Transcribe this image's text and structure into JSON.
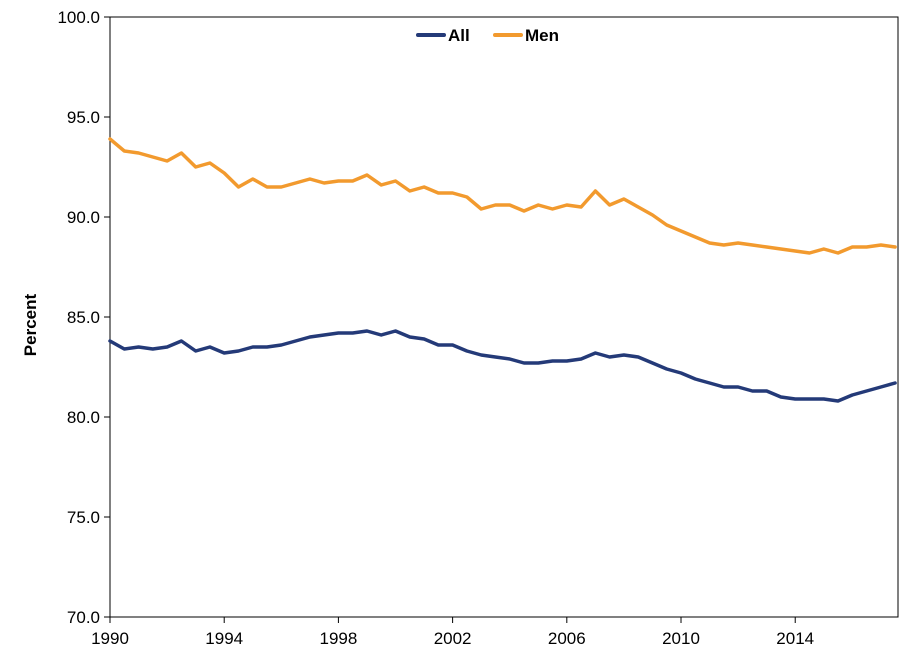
{
  "chart_data": {
    "type": "line",
    "title": "",
    "xlabel": "",
    "ylabel": "Percent",
    "xlim": [
      1990,
      2017.6
    ],
    "ylim": [
      70.0,
      100.0
    ],
    "x_ticks": [
      "1990",
      "1994",
      "1998",
      "2002",
      "2006",
      "2010",
      "2014"
    ],
    "y_ticks": [
      "70.0",
      "75.0",
      "80.0",
      "85.0",
      "90.0",
      "95.0",
      "100.0"
    ],
    "grid": false,
    "legend_position": "top-center",
    "series": [
      {
        "name": "All",
        "color": "#243a78",
        "x": [
          1990.0,
          1990.5,
          1991.0,
          1991.5,
          1992.0,
          1992.5,
          1993.0,
          1993.5,
          1994.0,
          1994.5,
          1995.0,
          1995.5,
          1996.0,
          1996.5,
          1997.0,
          1997.5,
          1998.0,
          1998.5,
          1999.0,
          1999.5,
          2000.0,
          2000.5,
          2001.0,
          2001.5,
          2002.0,
          2002.5,
          2003.0,
          2003.5,
          2004.0,
          2004.5,
          2005.0,
          2005.5,
          2006.0,
          2006.5,
          2007.0,
          2007.5,
          2008.0,
          2008.5,
          2009.0,
          2009.5,
          2010.0,
          2010.5,
          2011.0,
          2011.5,
          2012.0,
          2012.5,
          2013.0,
          2013.5,
          2014.0,
          2014.5,
          2015.0,
          2015.5,
          2016.0,
          2016.5,
          2017.0,
          2017.5
        ],
        "values": [
          83.8,
          83.4,
          83.5,
          83.4,
          83.5,
          83.8,
          83.3,
          83.5,
          83.2,
          83.3,
          83.5,
          83.5,
          83.6,
          83.8,
          84.0,
          84.1,
          84.2,
          84.2,
          84.3,
          84.1,
          84.3,
          84.0,
          83.9,
          83.6,
          83.6,
          83.3,
          83.1,
          83.0,
          82.9,
          82.7,
          82.7,
          82.8,
          82.8,
          82.9,
          83.2,
          83.0,
          83.1,
          83.0,
          82.7,
          82.4,
          82.2,
          81.9,
          81.7,
          81.5,
          81.5,
          81.3,
          81.3,
          81.0,
          80.9,
          80.9,
          80.9,
          80.8,
          81.1,
          81.3,
          81.5,
          81.7
        ]
      },
      {
        "name": "Men",
        "color": "#f29a2e",
        "x": [
          1990.0,
          1990.5,
          1991.0,
          1991.5,
          1992.0,
          1992.5,
          1993.0,
          1993.5,
          1994.0,
          1994.5,
          1995.0,
          1995.5,
          1996.0,
          1996.5,
          1997.0,
          1997.5,
          1998.0,
          1998.5,
          1999.0,
          1999.5,
          2000.0,
          2000.5,
          2001.0,
          2001.5,
          2002.0,
          2002.5,
          2003.0,
          2003.5,
          2004.0,
          2004.5,
          2005.0,
          2005.5,
          2006.0,
          2006.5,
          2007.0,
          2007.5,
          2008.0,
          2008.5,
          2009.0,
          2009.5,
          2010.0,
          2010.5,
          2011.0,
          2011.5,
          2012.0,
          2012.5,
          2013.0,
          2013.5,
          2014.0,
          2014.5,
          2015.0,
          2015.5,
          2016.0,
          2016.5,
          2017.0,
          2017.5
        ],
        "values": [
          93.9,
          93.3,
          93.2,
          93.0,
          92.8,
          93.2,
          92.5,
          92.7,
          92.2,
          91.5,
          91.9,
          91.5,
          91.5,
          91.7,
          91.9,
          91.7,
          91.8,
          91.8,
          92.1,
          91.6,
          91.8,
          91.3,
          91.5,
          91.2,
          91.2,
          91.0,
          90.4,
          90.6,
          90.6,
          90.3,
          90.6,
          90.4,
          90.6,
          90.5,
          91.3,
          90.6,
          90.9,
          90.5,
          90.1,
          89.6,
          89.3,
          89.0,
          88.7,
          88.6,
          88.7,
          88.6,
          88.5,
          88.4,
          88.3,
          88.2,
          88.4,
          88.2,
          88.5,
          88.5,
          88.6,
          88.5
        ]
      }
    ]
  }
}
